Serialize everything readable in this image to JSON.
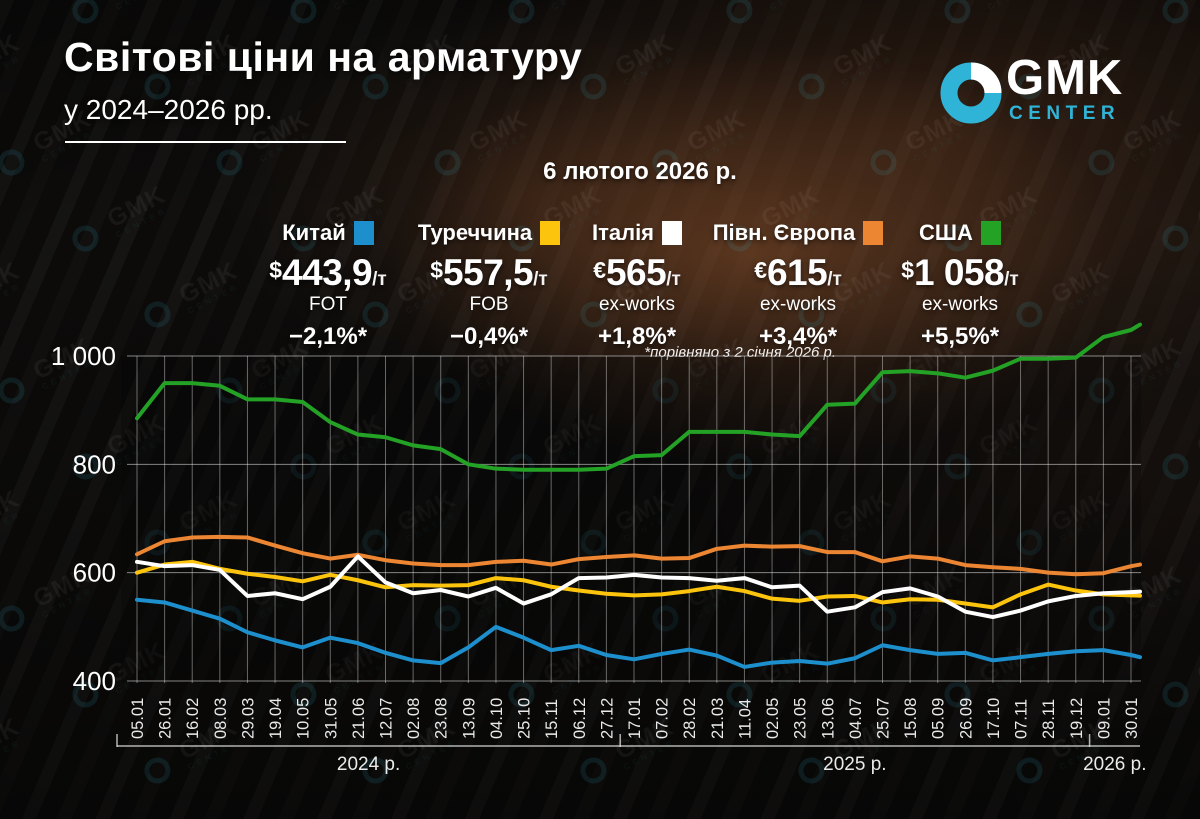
{
  "title": "Світові ціни на арматуру",
  "subtitle": "у 2024–2026 рр.",
  "logo": {
    "name": "GMK",
    "sub": "CENTER",
    "accent_color": "#2fb4d8"
  },
  "date_label": "6 лютого 2026 р.",
  "footnote": "*порівняно з 2 січня 2026 р.",
  "watermark": {
    "text": "GMK",
    "sub": "CENTER"
  },
  "legend": [
    {
      "label": "Китай",
      "color": "#1d8fcd",
      "currency": "$",
      "price": "443,9",
      "unit": "/т",
      "term": "FOT",
      "change": "−2,1%*"
    },
    {
      "label": "Туреччина",
      "color": "#fcc40d",
      "currency": "$",
      "price": "557,5",
      "unit": "/т",
      "term": "FOB",
      "change": "−0,4%*"
    },
    {
      "label": "Італія",
      "color": "#ffffff",
      "currency": "€",
      "price": "565",
      "unit": "/т",
      "term": "ex-works",
      "change": "+1,8%*"
    },
    {
      "label": "Півн. Європа",
      "color": "#ec8633",
      "currency": "€",
      "price": "615",
      "unit": "/т",
      "term": "ex-works",
      "change": "+3,4%*"
    },
    {
      "label": "США",
      "color": "#23a226",
      "currency": "$",
      "price": "1 058",
      "unit": "/т",
      "term": "ex-works",
      "change": "+5,5%*"
    }
  ],
  "chart_data": {
    "type": "line",
    "title": "Світові ціни на арматуру у 2024-2026 рр., за тонну",
    "ylim": [
      400,
      1060
    ],
    "grid": true,
    "y_ticks": [
      {
        "v": 400,
        "label": "400"
      },
      {
        "v": 600,
        "label": "600"
      },
      {
        "v": 800,
        "label": "800"
      },
      {
        "v": 1000,
        "label": "1 000"
      }
    ],
    "x_labels": [
      "05.01",
      "26.01",
      "16.02",
      "08.03",
      "29.03",
      "19.04",
      "10.05",
      "31.05",
      "21.06",
      "12.07",
      "02.08",
      "23.08",
      "13.09",
      "04.10",
      "25.10",
      "15.11",
      "06.12",
      "27.12",
      "17.01",
      "07.02",
      "28.02",
      "21.03",
      "11.04",
      "02.05",
      "23.05",
      "13.06",
      "04.07",
      "25.07",
      "15.08",
      "05.09",
      "26.09",
      "17.10",
      "07.11",
      "28.11",
      "19.12",
      "09.01",
      "30.01"
    ],
    "year_groups": [
      {
        "label": "2024 р.",
        "from": 0,
        "to": 17
      },
      {
        "label": "2025 р.",
        "from": 18,
        "to": 34
      },
      {
        "label": "2026 р.",
        "from": 35,
        "to": 36
      }
    ],
    "series": [
      {
        "key": "usa",
        "name": "США",
        "color": "#23a226",
        "values": [
          885,
          950,
          950,
          945,
          920,
          920,
          915,
          878,
          855,
          850,
          835,
          828,
          800,
          792,
          790,
          790,
          790,
          792,
          815,
          817,
          860,
          860,
          860,
          855,
          852,
          910,
          912,
          970,
          972,
          968,
          960,
          973,
          995,
          995,
          997,
          1035,
          1048
        ],
        "final": 1058
      },
      {
        "key": "north-europe",
        "name": "Півн. Європа",
        "color": "#ec8633",
        "values": [
          634,
          658,
          665,
          666,
          665,
          650,
          636,
          626,
          633,
          623,
          617,
          614,
          614,
          620,
          622,
          615,
          625,
          629,
          632,
          626,
          627,
          644,
          650,
          648,
          649,
          638,
          638,
          621,
          630,
          626,
          614,
          610,
          607,
          600,
          597,
          599,
          612
        ],
        "final": 615
      },
      {
        "key": "china",
        "name": "Китай",
        "color": "#1d8fcd",
        "values": [
          550,
          545,
          530,
          515,
          490,
          475,
          462,
          480,
          470,
          452,
          438,
          433,
          462,
          500,
          480,
          457,
          465,
          448,
          440,
          450,
          458,
          447,
          426,
          434,
          437,
          432,
          442,
          466,
          457,
          450,
          452,
          438,
          444,
          450,
          455,
          457,
          448
        ],
        "final": 444
      },
      {
        "key": "turkey",
        "name": "Туреччина",
        "color": "#fcc40d",
        "values": [
          600,
          615,
          620,
          607,
          598,
          592,
          584,
          596,
          586,
          573,
          577,
          576,
          577,
          590,
          586,
          574,
          567,
          561,
          558,
          560,
          566,
          574,
          566,
          552,
          548,
          556,
          557,
          545,
          551,
          550,
          543,
          536,
          560,
          578,
          567,
          560,
          558
        ],
        "final": 557.5
      },
      {
        "key": "italy",
        "name": "Італія",
        "color": "#ffffff",
        "values": [
          620,
          612,
          614,
          605,
          557,
          562,
          551,
          574,
          630,
          582,
          562,
          568,
          556,
          572,
          543,
          560,
          590,
          591,
          596,
          591,
          590,
          585,
          590,
          573,
          576,
          528,
          536,
          564,
          571,
          556,
          528,
          518,
          530,
          547,
          557,
          562,
          564
        ],
        "final": 565
      }
    ]
  }
}
